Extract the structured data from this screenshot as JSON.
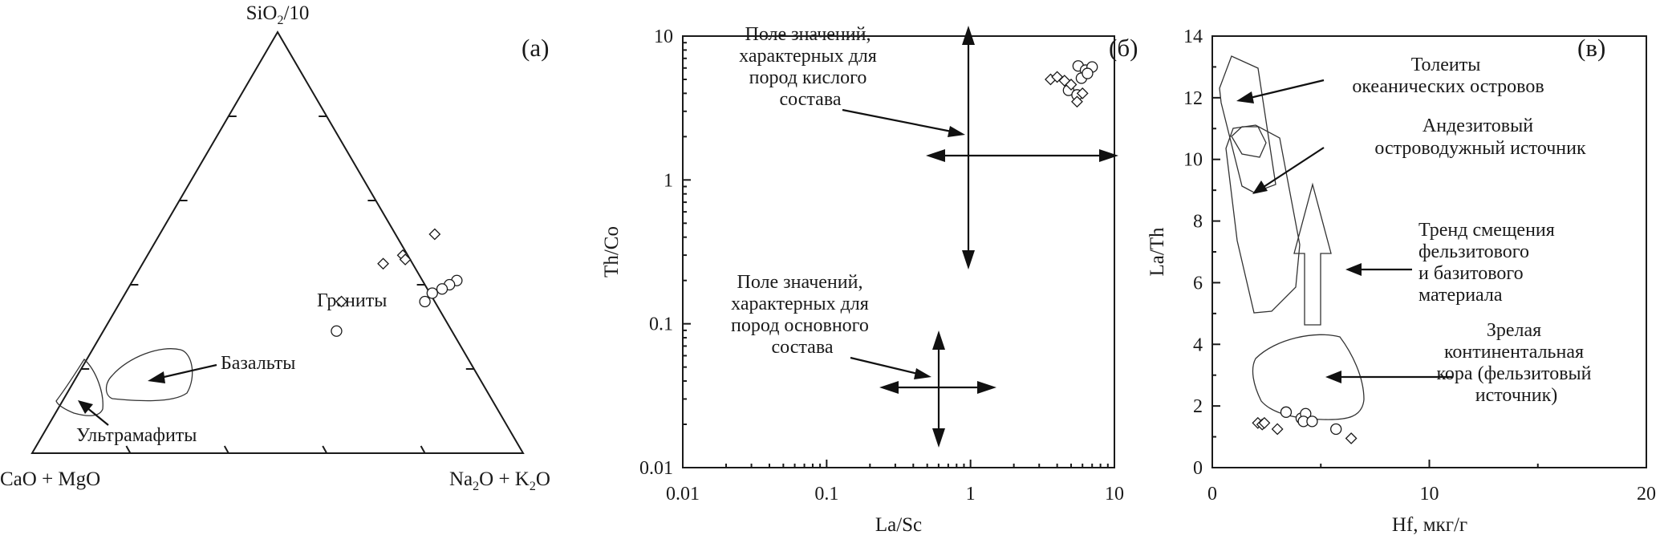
{
  "chart_data": [
    {
      "type": "ternary",
      "panel_label": "(а)",
      "vertices": {
        "top": "SiO₂/10",
        "bottom_left": "CaO + MgO",
        "bottom_right": "Na₂O + K₂O"
      },
      "regions": [
        {
          "label": "Ультрамафиты"
        },
        {
          "label": "Базальты"
        },
        {
          "label": "Граниты"
        }
      ],
      "series": [
        {
          "marker": "diamond",
          "points": [
            {
              "top": 0.52,
              "right": 0.56
            },
            {
              "top": 0.45,
              "right": 0.49
            },
            {
              "top": 0.47,
              "right": 0.52
            },
            {
              "top": 0.46,
              "right": 0.53
            },
            {
              "top": 0.36,
              "right": 0.45
            }
          ]
        },
        {
          "marker": "circle",
          "points": [
            {
              "top": 0.41,
              "right": 0.66
            },
            {
              "top": 0.4,
              "right": 0.65
            },
            {
              "top": 0.39,
              "right": 0.64
            },
            {
              "top": 0.38,
              "right": 0.625
            },
            {
              "top": 0.36,
              "right": 0.62
            },
            {
              "top": 0.29,
              "right": 0.475
            }
          ]
        }
      ]
    },
    {
      "type": "scatter",
      "panel_label": "(б)",
      "xlabel": "La/Sc",
      "ylabel": "Th/Co",
      "xscale": "log",
      "yscale": "log",
      "xlim": [
        0.01,
        10
      ],
      "ylim": [
        0.01,
        10
      ],
      "xticks": [
        "0.01",
        "0.1",
        "1",
        "10"
      ],
      "yticks": [
        "0.01",
        "0.1",
        "1",
        "10"
      ],
      "annotations": [
        {
          "text": [
            "Поле значений,",
            "характерных для",
            "пород кислого",
            "состава"
          ]
        },
        {
          "text": [
            "Поле значений,",
            "характерных для",
            "пород основного",
            "состава"
          ]
        }
      ],
      "series": [
        {
          "marker": "circle",
          "points": [
            [
              5.6,
              6.2
            ],
            [
              6.3,
              5.8
            ],
            [
              7.0,
              6.1
            ],
            [
              5.9,
              5.1
            ],
            [
              6.5,
              5.5
            ],
            [
              4.8,
              4.2
            ],
            [
              5.5,
              3.9
            ]
          ]
        },
        {
          "marker": "diamond",
          "points": [
            [
              3.6,
              5.0
            ],
            [
              4.0,
              5.2
            ],
            [
              5.0,
              4.6
            ],
            [
              5.5,
              3.5
            ],
            [
              6.0,
              4.0
            ],
            [
              4.5,
              4.9
            ]
          ]
        }
      ]
    },
    {
      "type": "scatter",
      "panel_label": "(в)",
      "xlabel": "Hf, мкг/г",
      "ylabel": "La/Th",
      "xlim": [
        0,
        20
      ],
      "ylim": [
        0,
        14
      ],
      "xticks": [
        "0",
        "10",
        "20"
      ],
      "yticks": [
        "0",
        "2",
        "4",
        "6",
        "8",
        "10",
        "12",
        "14"
      ],
      "annotations": [
        {
          "text": [
            "Толеиты",
            "океанических островов"
          ]
        },
        {
          "text": [
            "Андезитовый",
            "островодужный источник"
          ]
        },
        {
          "text": [
            "Тренд смещения",
            "фельзитового",
            "и базитового",
            "материала"
          ]
        },
        {
          "text": [
            "Зрелая",
            "континентальная",
            "кора (фельзитовый",
            "источник)"
          ]
        }
      ],
      "series": [
        {
          "marker": "circle",
          "points": [
            [
              3.4,
              1.8
            ],
            [
              4.1,
              1.6
            ],
            [
              4.3,
              1.75
            ],
            [
              4.2,
              1.5
            ],
            [
              4.6,
              1.5
            ],
            [
              5.7,
              1.25
            ]
          ]
        },
        {
          "marker": "diamond",
          "points": [
            [
              2.1,
              1.45
            ],
            [
              2.3,
              1.4
            ],
            [
              2.4,
              1.45
            ],
            [
              3.0,
              1.25
            ],
            [
              6.4,
              0.95
            ]
          ]
        }
      ]
    }
  ]
}
